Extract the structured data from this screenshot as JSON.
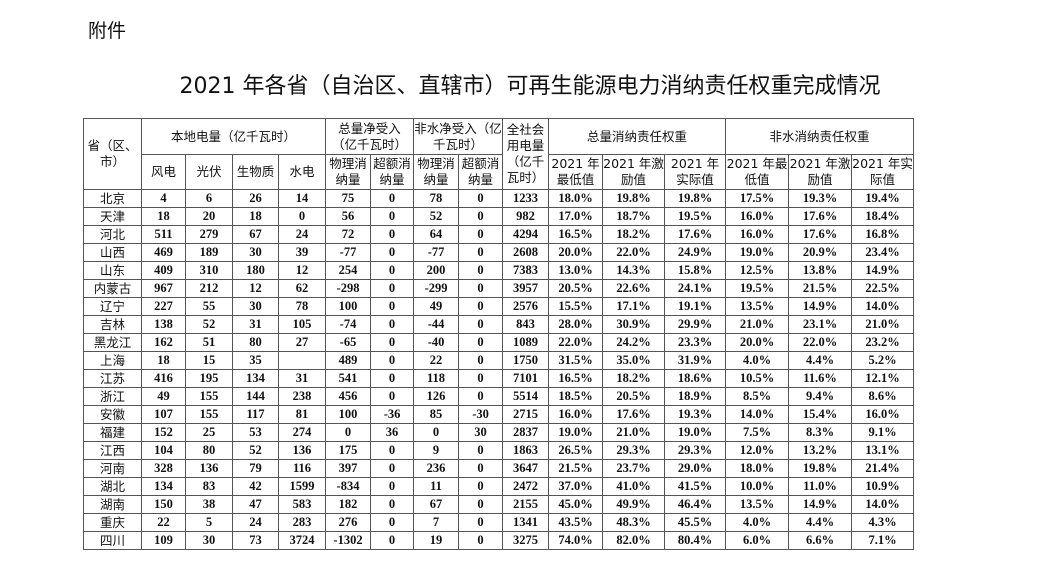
{
  "attachment_label": "附件",
  "title": "2021 年各省（自治区、直辖市）可再生能源电力消纳责任权重完成情况",
  "header": {
    "province": "省（区、市）",
    "local": "本地电量（亿千瓦时）",
    "total_net": "总量净受入（亿千瓦时）",
    "nonhydro_net": "非水净受入（亿千瓦时）",
    "society": "全社会用电量（亿千瓦时）",
    "total_weight": "总量消纳责任权重",
    "nonhydro_weight": "非水消纳责任权重",
    "wind": "风电",
    "solar": "光伏",
    "biomass": "生物质",
    "hydro": "水电",
    "physical": "物理消纳量",
    "excess": "超额消纳量",
    "min": "2021 年最低值",
    "incentive": "2021 年激励值",
    "actual": "2021 年实际值"
  },
  "rows": [
    [
      "北京",
      "4",
      "6",
      "26",
      "14",
      "75",
      "0",
      "78",
      "0",
      "1233",
      "18.0%",
      "19.8%",
      "19.8%",
      "17.5%",
      "19.3%",
      "19.4%"
    ],
    [
      "天津",
      "18",
      "20",
      "18",
      "0",
      "56",
      "0",
      "52",
      "0",
      "982",
      "17.0%",
      "18.7%",
      "19.5%",
      "16.0%",
      "17.6%",
      "18.4%"
    ],
    [
      "河北",
      "511",
      "279",
      "67",
      "24",
      "72",
      "0",
      "64",
      "0",
      "4294",
      "16.5%",
      "18.2%",
      "17.6%",
      "16.0%",
      "17.6%",
      "16.8%"
    ],
    [
      "山西",
      "469",
      "189",
      "30",
      "39",
      "-77",
      "0",
      "-77",
      "0",
      "2608",
      "20.0%",
      "22.0%",
      "24.9%",
      "19.0%",
      "20.9%",
      "23.4%"
    ],
    [
      "山东",
      "409",
      "310",
      "180",
      "12",
      "254",
      "0",
      "200",
      "0",
      "7383",
      "13.0%",
      "14.3%",
      "15.8%",
      "12.5%",
      "13.8%",
      "14.9%"
    ],
    [
      "内蒙古",
      "967",
      "212",
      "12",
      "62",
      "-298",
      "0",
      "-299",
      "0",
      "3957",
      "20.5%",
      "22.6%",
      "24.1%",
      "19.5%",
      "21.5%",
      "22.5%"
    ],
    [
      "辽宁",
      "227",
      "55",
      "30",
      "78",
      "100",
      "0",
      "49",
      "0",
      "2576",
      "15.5%",
      "17.1%",
      "19.1%",
      "13.5%",
      "14.9%",
      "14.0%"
    ],
    [
      "吉林",
      "138",
      "52",
      "31",
      "105",
      "-74",
      "0",
      "-44",
      "0",
      "843",
      "28.0%",
      "30.9%",
      "29.9%",
      "21.0%",
      "23.1%",
      "21.0%"
    ],
    [
      "黑龙江",
      "162",
      "51",
      "80",
      "27",
      "-65",
      "0",
      "-40",
      "0",
      "1089",
      "22.0%",
      "24.2%",
      "23.3%",
      "20.0%",
      "22.0%",
      "23.2%"
    ],
    [
      "上海",
      "18",
      "15",
      "35",
      "",
      "489",
      "0",
      "22",
      "0",
      "1750",
      "31.5%",
      "35.0%",
      "31.9%",
      "4.0%",
      "4.4%",
      "5.2%"
    ],
    [
      "江苏",
      "416",
      "195",
      "134",
      "31",
      "541",
      "0",
      "118",
      "0",
      "7101",
      "16.5%",
      "18.2%",
      "18.6%",
      "10.5%",
      "11.6%",
      "12.1%"
    ],
    [
      "浙江",
      "49",
      "155",
      "144",
      "238",
      "456",
      "0",
      "126",
      "0",
      "5514",
      "18.5%",
      "20.5%",
      "18.9%",
      "8.5%",
      "9.4%",
      "8.6%"
    ],
    [
      "安徽",
      "107",
      "155",
      "117",
      "81",
      "100",
      "-36",
      "85",
      "-30",
      "2715",
      "16.0%",
      "17.6%",
      "19.3%",
      "14.0%",
      "15.4%",
      "16.0%"
    ],
    [
      "福建",
      "152",
      "25",
      "53",
      "274",
      "0",
      "36",
      "0",
      "30",
      "2837",
      "19.0%",
      "21.0%",
      "19.0%",
      "7.5%",
      "8.3%",
      "9.1%"
    ],
    [
      "江西",
      "104",
      "80",
      "52",
      "136",
      "175",
      "0",
      "9",
      "0",
      "1863",
      "26.5%",
      "29.3%",
      "29.3%",
      "12.0%",
      "13.2%",
      "13.1%"
    ],
    [
      "河南",
      "328",
      "136",
      "79",
      "116",
      "397",
      "0",
      "236",
      "0",
      "3647",
      "21.5%",
      "23.7%",
      "29.0%",
      "18.0%",
      "19.8%",
      "21.4%"
    ],
    [
      "湖北",
      "134",
      "83",
      "42",
      "1599",
      "-834",
      "0",
      "11",
      "0",
      "2472",
      "37.0%",
      "41.0%",
      "41.5%",
      "10.0%",
      "11.0%",
      "10.9%"
    ],
    [
      "湖南",
      "150",
      "38",
      "47",
      "583",
      "182",
      "0",
      "67",
      "0",
      "2155",
      "45.0%",
      "49.9%",
      "46.4%",
      "13.5%",
      "14.9%",
      "14.0%"
    ],
    [
      "重庆",
      "22",
      "5",
      "24",
      "283",
      "276",
      "0",
      "7",
      "0",
      "1341",
      "43.5%",
      "48.3%",
      "45.5%",
      "4.0%",
      "4.4%",
      "4.3%"
    ],
    [
      "四川",
      "109",
      "30",
      "73",
      "3724",
      "-1302",
      "0",
      "19",
      "0",
      "3275",
      "74.0%",
      "82.0%",
      "80.4%",
      "6.0%",
      "6.6%",
      "7.1%"
    ]
  ]
}
